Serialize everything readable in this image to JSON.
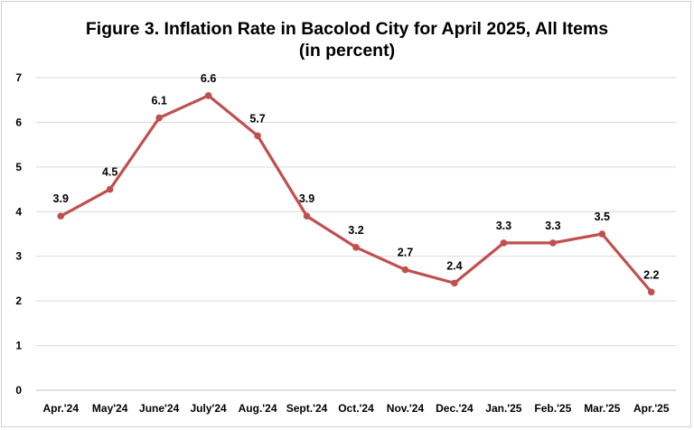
{
  "chart_data": {
    "type": "line",
    "title": "Figure 3. Inflation Rate in Bacolod City for April 2025, All Items",
    "subtitle": "(in percent)",
    "categories": [
      "Apr.'24",
      "May'24",
      "June'24",
      "July'24",
      "Aug.'24",
      "Sept.'24",
      "Oct.'24",
      "Nov.'24",
      "Dec.'24",
      "Jan.'25",
      "Feb.'25",
      "Mar.'25",
      "Apr.'25"
    ],
    "series": [
      {
        "values": [
          3.9,
          4.5,
          6.1,
          6.6,
          5.7,
          3.9,
          3.2,
          2.7,
          2.4,
          3.3,
          3.3,
          3.5,
          2.2
        ]
      }
    ],
    "data_labels": [
      "3.9",
      "4.5",
      "6.1",
      "6.6",
      "5.7",
      "3.9",
      "3.2",
      "2.7",
      "2.4",
      "3.3",
      "3.3",
      "3.5",
      "2.2"
    ],
    "y_ticks": [
      "0",
      "1",
      "2",
      "3",
      "4",
      "5",
      "6",
      "7"
    ],
    "ylim": [
      0,
      7
    ],
    "grid": true,
    "legend": "none",
    "colors": {
      "line": "#C0504D",
      "grid": "#d9d9d9",
      "axis": "#bfbfbf"
    }
  }
}
